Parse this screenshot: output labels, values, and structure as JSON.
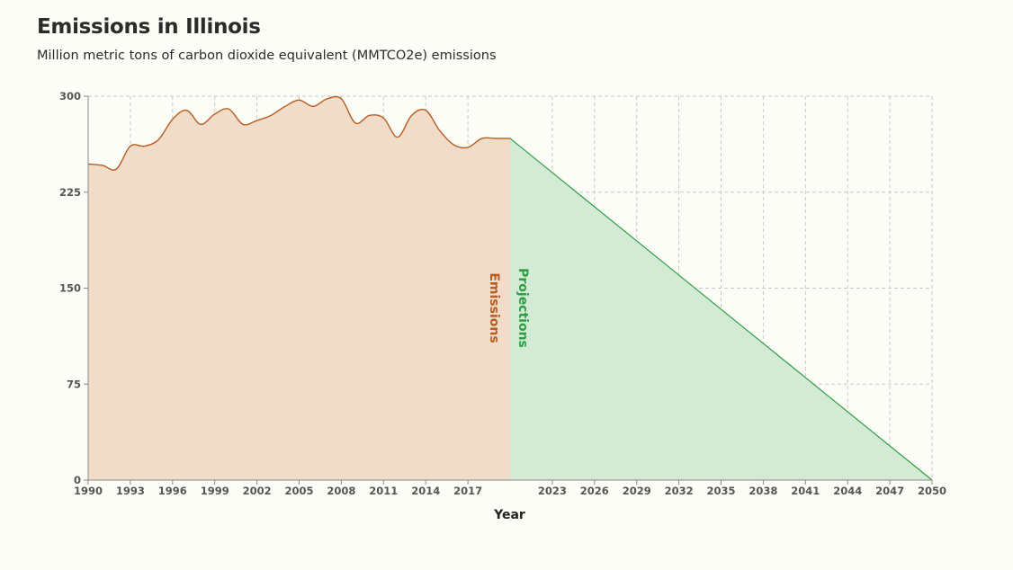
{
  "header": {
    "title": "Emissions in Illinois",
    "subtitle": "Million metric tons of carbon dioxide equivalent (MMTCO2e) emissions"
  },
  "chart_data": {
    "type": "area",
    "title": "Emissions in Illinois",
    "subtitle": "Million metric tons of carbon dioxide equivalent (MMTCO2e) emissions",
    "xlabel": "Year",
    "ylabel": "",
    "xlim": [
      1990,
      2050
    ],
    "ylim": [
      0,
      300
    ],
    "xticks": [
      "1990",
      "1993",
      "1996",
      "1999",
      "2002",
      "2005",
      "2008",
      "2011",
      "2014",
      "2017",
      "2023",
      "2026",
      "2029",
      "2032",
      "2035",
      "2038",
      "2041",
      "2044",
      "2047",
      "2050"
    ],
    "yticks": [
      "0",
      "75",
      "150",
      "225",
      "300"
    ],
    "grid": true,
    "colors": {
      "emissions_line": "#b85c1f",
      "emissions_fill": "#f0dcc9",
      "projections_line": "#2e9e44",
      "projections_fill": "#d3ebd5",
      "grid": "#c8c8c8",
      "axis": "#888888"
    },
    "series": [
      {
        "name": "Emissions",
        "x": [
          1990,
          1991,
          1992,
          1993,
          1994,
          1995,
          1996,
          1997,
          1998,
          1999,
          2000,
          2001,
          2002,
          2003,
          2004,
          2005,
          2006,
          2007,
          2008,
          2009,
          2010,
          2011,
          2012,
          2013,
          2014,
          2015,
          2016,
          2017,
          2018,
          2019,
          2020
        ],
        "values": [
          247,
          246,
          243,
          261,
          261,
          266,
          282,
          289,
          278,
          286,
          290,
          278,
          281,
          285,
          292,
          297,
          292,
          298,
          298,
          279,
          285,
          283,
          268,
          285,
          289,
          273,
          262,
          260,
          267,
          267,
          267
        ]
      },
      {
        "name": "Projections",
        "x": [
          2020,
          2050
        ],
        "values": [
          267,
          0
        ]
      }
    ],
    "annotations": [
      "Emissions",
      "Projections"
    ]
  }
}
